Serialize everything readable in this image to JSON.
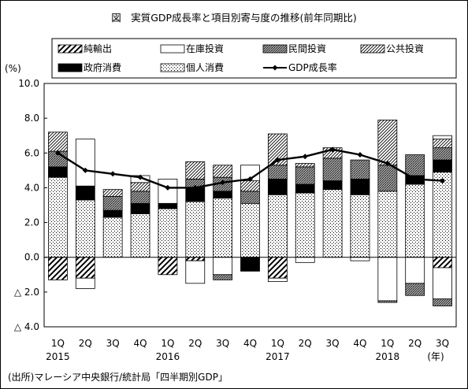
{
  "chart_data": {
    "type": "bar",
    "title": "図　実質GDP成長率と項目別寄与度の推移(前年同期比)",
    "ylabel": "(%)",
    "xunit": "(年)",
    "source": "(出所)マレーシア中央銀行/統計局「四半期別GDP」",
    "ylim": [
      -4.0,
      10.0
    ],
    "yticks": [
      {
        "value": 10.0,
        "label": "10.0"
      },
      {
        "value": 8.0,
        "label": "8.0"
      },
      {
        "value": 6.0,
        "label": "6.0"
      },
      {
        "value": 4.0,
        "label": "4.0"
      },
      {
        "value": 2.0,
        "label": "2.0"
      },
      {
        "value": 0.0,
        "label": "0.0"
      },
      {
        "value": -2.0,
        "label": "△ 2.0"
      },
      {
        "value": -4.0,
        "label": "△ 4.0"
      }
    ],
    "categories": [
      "1Q",
      "2Q",
      "3Q",
      "4Q",
      "1Q",
      "2Q",
      "3Q",
      "4Q",
      "1Q",
      "2Q",
      "3Q",
      "4Q",
      "1Q",
      "2Q",
      "3Q"
    ],
    "years": [
      {
        "label": "2015",
        "index": 0
      },
      {
        "label": "2016",
        "index": 4
      },
      {
        "label": "2017",
        "index": 8
      },
      {
        "label": "2018",
        "index": 12
      }
    ],
    "legend": {
      "net_exports": "純輸出",
      "inventory": "在庫投資",
      "private_investment": "民間投資",
      "public_investment": "公共投資",
      "government_consumption": "政府消費",
      "private_consumption": "個人消費",
      "gdp_growth": "GDP成長率"
    },
    "series": [
      {
        "key": "private_consumption",
        "name": "個人消費",
        "pattern": "dots",
        "values": [
          4.6,
          3.3,
          2.3,
          2.5,
          2.8,
          3.2,
          3.4,
          3.1,
          3.6,
          3.7,
          3.9,
          3.6,
          3.8,
          4.2,
          4.9
        ]
      },
      {
        "key": "government_consumption",
        "name": "政府消費",
        "pattern": "black",
        "values": [
          0.6,
          0.8,
          0.4,
          0.6,
          0.3,
          0.8,
          0.4,
          0.0,
          0.9,
          0.5,
          0.5,
          0.9,
          0.0,
          0.5,
          0.7
        ]
      },
      {
        "key": "private_investment",
        "name": "民間投資",
        "pattern": "crosshatch",
        "values": [
          0.9,
          0.0,
          0.8,
          0.7,
          0.0,
          0.5,
          0.8,
          0.7,
          0.8,
          1.0,
          1.3,
          1.1,
          1.5,
          1.2,
          0.7
        ]
      },
      {
        "key": "public_investment",
        "name": "公共投資",
        "pattern": "diagonal-fine",
        "values": [
          1.1,
          0.0,
          0.4,
          0.5,
          0.0,
          1.0,
          0.7,
          0.6,
          1.8,
          0.2,
          0.6,
          0.0,
          2.6,
          0.0,
          0.5
        ]
      },
      {
        "key": "inventory",
        "name": "在庫投資",
        "pattern": "white",
        "values": [
          0.0,
          2.7,
          0.0,
          0.4,
          1.4,
          0.0,
          0.0,
          0.9,
          0.0,
          0.0,
          0.0,
          0.0,
          0.0,
          0.0,
          0.2
        ]
      },
      {
        "key": "net_exports",
        "name": "純輸出",
        "pattern": "diagonal-bold",
        "values": [
          -1.3,
          -1.2,
          0.0,
          0.0,
          -1.0,
          -0.2,
          0.0,
          0.0,
          -1.2,
          0.0,
          0.0,
          0.0,
          0.0,
          0.0,
          -0.6
        ]
      }
    ],
    "negatives": [
      {
        "key": "inventory",
        "values": [
          0.0,
          -0.6,
          0.0,
          0.0,
          0.0,
          -1.3,
          -1.0,
          0.0,
          -0.2,
          -0.3,
          0.0,
          -0.2,
          -2.5,
          -1.5,
          -1.8
        ]
      },
      {
        "key": "government_consumption",
        "values": [
          0.0,
          0.0,
          0.0,
          0.0,
          0.0,
          0.0,
          0.0,
          -0.8,
          0.0,
          0.0,
          0.0,
          0.0,
          0.0,
          0.0,
          0.0
        ]
      },
      {
        "key": "private_investment",
        "values": [
          0.0,
          0.0,
          0.0,
          0.0,
          0.0,
          0.0,
          -0.3,
          0.0,
          0.0,
          0.0,
          0.0,
          0.0,
          -0.1,
          -0.7,
          -0.4
        ]
      }
    ],
    "gdp_growth": [
      6.0,
      5.0,
      4.8,
      4.6,
      4.0,
      4.0,
      4.3,
      4.5,
      5.6,
      5.8,
      6.2,
      5.9,
      5.4,
      4.5,
      4.4
    ]
  }
}
